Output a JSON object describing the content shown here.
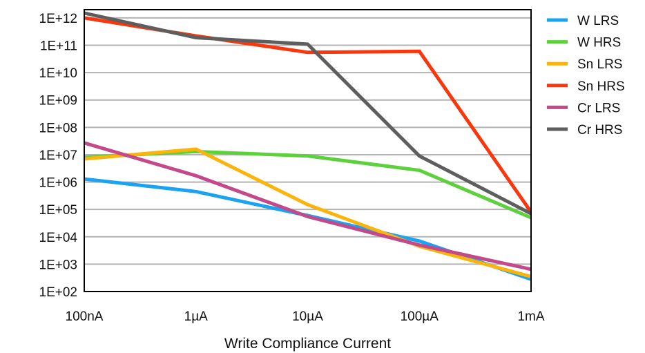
{
  "chart_data": {
    "type": "line",
    "title": "",
    "xlabel": "Write Compliance Current",
    "ylabel": "",
    "categories": [
      "100nA",
      "1µA",
      "10µA",
      "100µA",
      "1mA"
    ],
    "y_tick_labels": [
      "1E+02",
      "1E+03",
      "1E+04",
      "1E+05",
      "1E+06",
      "1E+07",
      "1E+08",
      "1E+09",
      "1E+10",
      "1E+11",
      "1E+12"
    ],
    "y_scale": "log",
    "ylim": [
      100,
      2000000000000
    ],
    "grid": true,
    "legend_position": "right",
    "series": [
      {
        "name": "W LRS",
        "color": "#1aa3f0",
        "values": [
          1300000,
          450000,
          60000,
          7000,
          280
        ]
      },
      {
        "name": "W HRS",
        "color": "#5cd13b",
        "values": [
          8000000,
          13000000,
          9000000,
          2700000,
          50000
        ]
      },
      {
        "name": "Sn LRS",
        "color": "#fbb40b",
        "values": [
          7000000,
          16000000,
          150000,
          4500,
          350
        ]
      },
      {
        "name": "Sn HRS",
        "color": "#f9360c",
        "values": [
          1000000000000,
          220000000000,
          55000000000,
          60000000000,
          80000
        ]
      },
      {
        "name": "Cr LRS",
        "color": "#c3498a",
        "values": [
          27000000,
          1700000,
          55000,
          5000,
          650
        ]
      },
      {
        "name": "Cr HRS",
        "color": "#5e5e5e",
        "values": [
          1500000000000,
          190000000000,
          110000000000,
          9000000,
          70000
        ]
      }
    ]
  }
}
